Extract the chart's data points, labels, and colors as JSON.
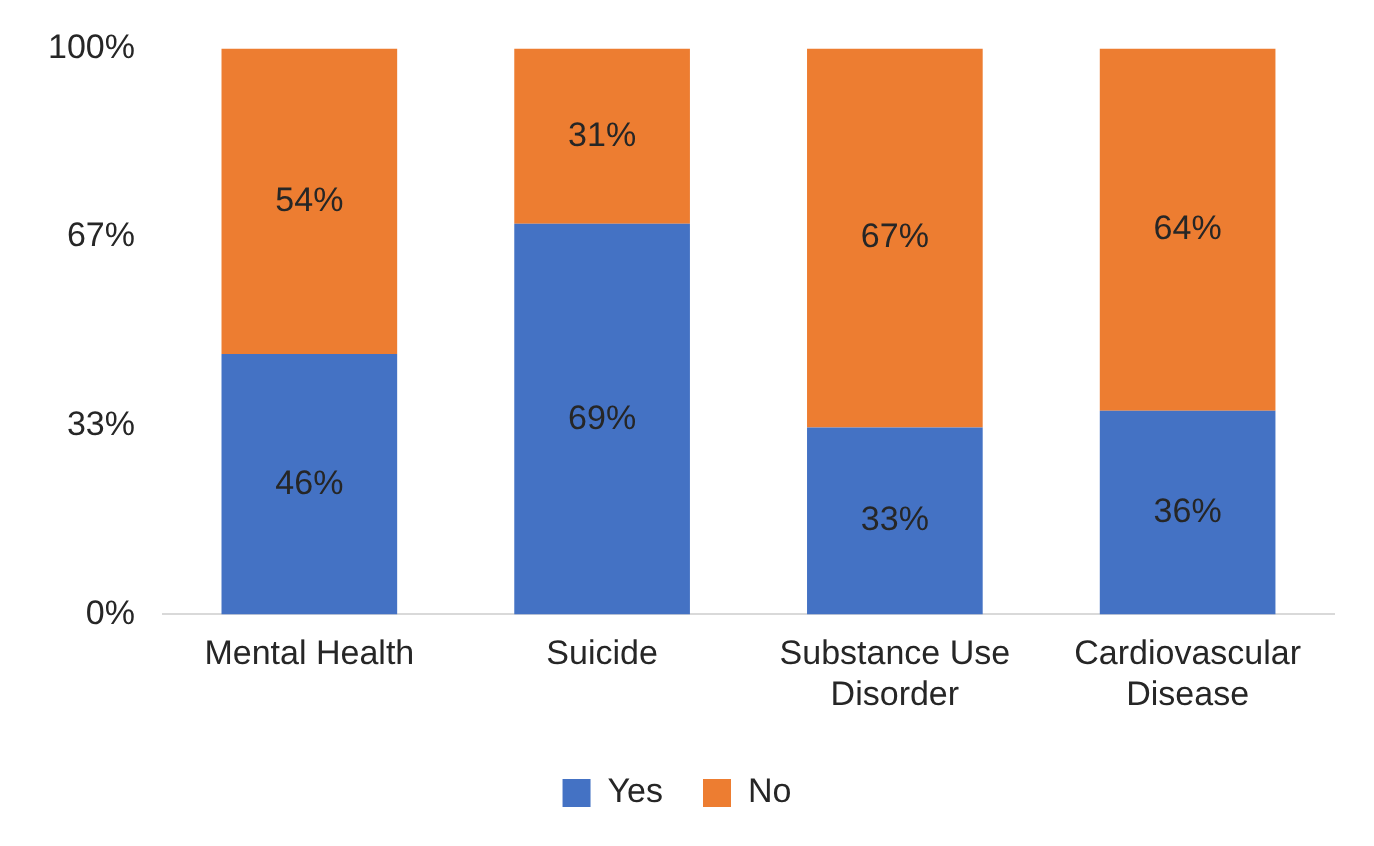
{
  "chart_data": {
    "type": "bar",
    "stacked": true,
    "categories": [
      "Mental Health",
      "Suicide",
      "Substance Use Disorder",
      "Cardiovascular Disease"
    ],
    "series": [
      {
        "name": "Yes",
        "color": "#4472c4",
        "values": [
          46,
          69,
          33,
          36
        ],
        "value_labels": [
          "46%",
          "69%",
          "33%",
          "36%"
        ]
      },
      {
        "name": "No",
        "color": "#ed7d31",
        "values": [
          54,
          31,
          67,
          64
        ],
        "value_labels": [
          "54%",
          "31%",
          "67%",
          "64%"
        ]
      }
    ],
    "ylim": [
      0,
      100
    ],
    "yticks": [
      {
        "value": 0,
        "label": "0%"
      },
      {
        "value": 33.3,
        "label": "33%"
      },
      {
        "value": 66.7,
        "label": "67%"
      },
      {
        "value": 100,
        "label": "100%"
      }
    ],
    "grid": false,
    "legend": "bottom"
  }
}
